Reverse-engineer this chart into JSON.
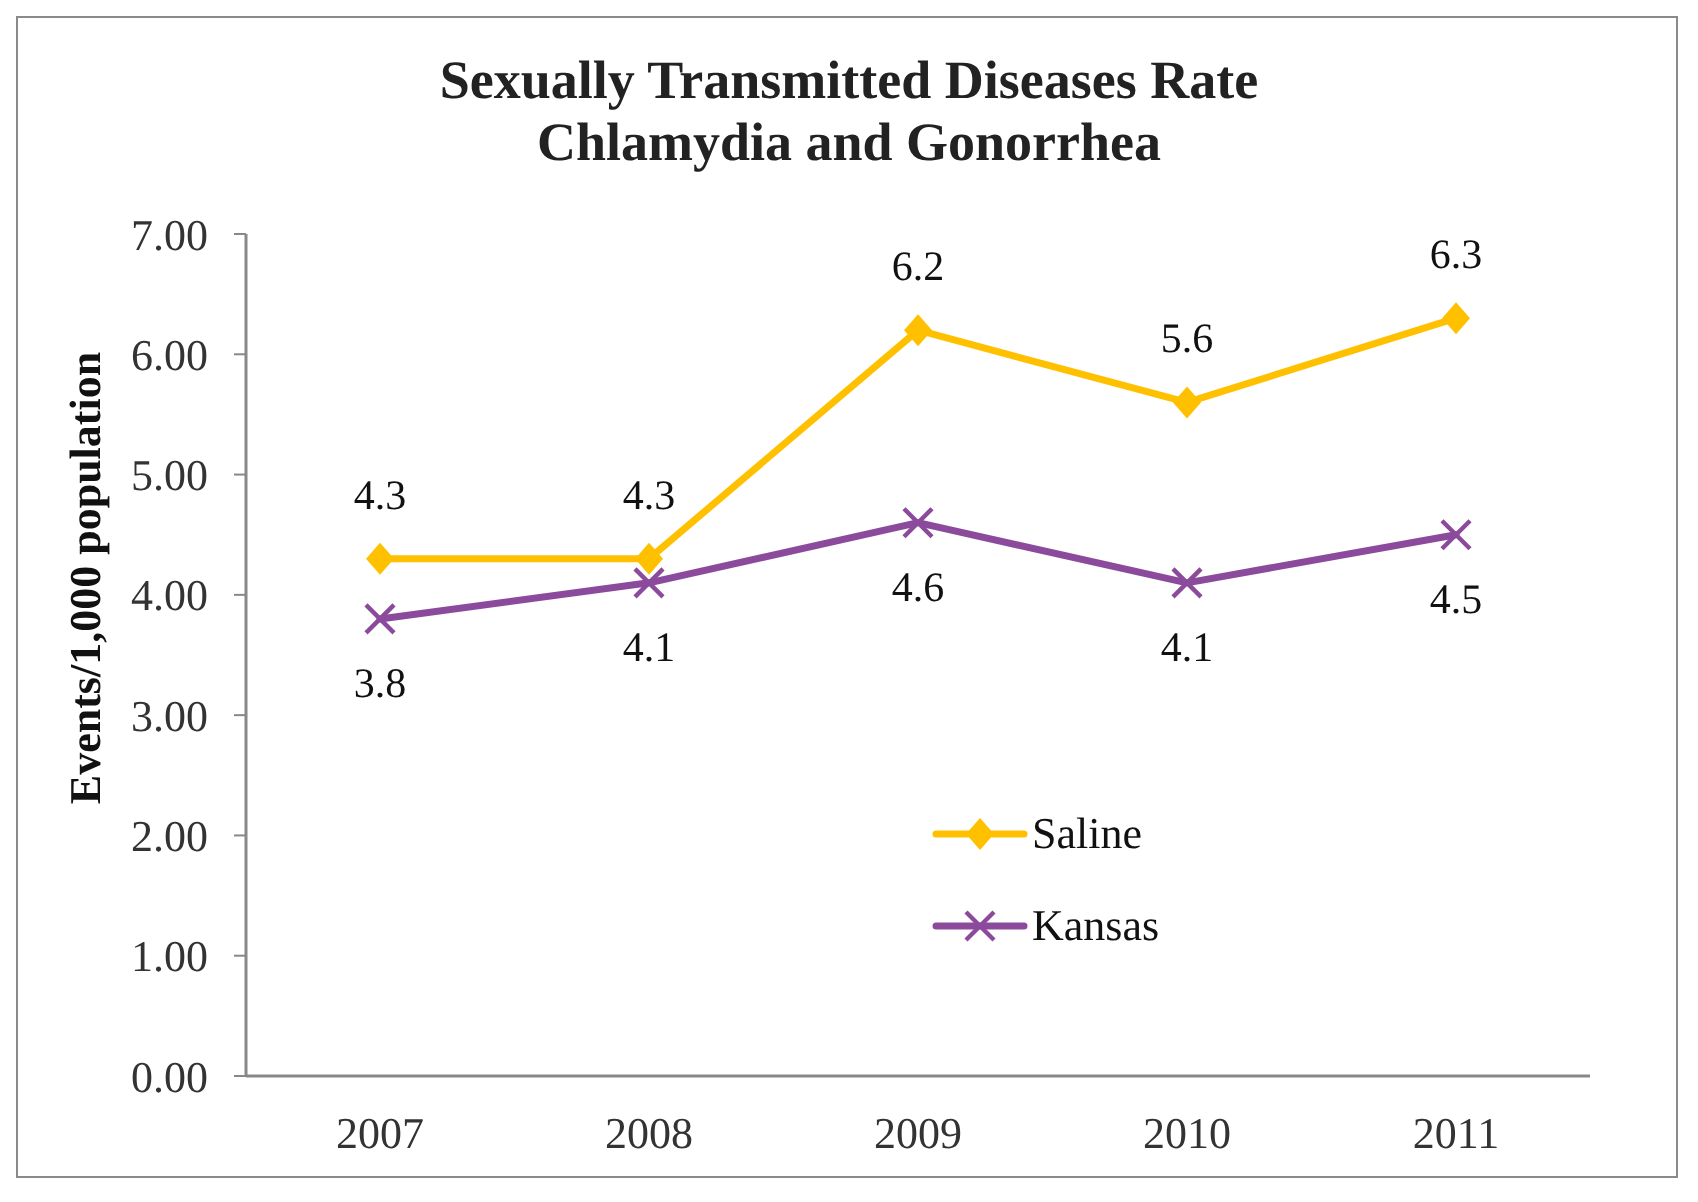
{
  "chart_data": {
    "type": "line",
    "title": "Sexually Transmitted Diseases Rate",
    "subtitle": "Chlamydia and Gonorrhea",
    "ylabel": "Events/1,000 population",
    "categories": [
      "2007",
      "2008",
      "2009",
      "2010",
      "2011"
    ],
    "series": [
      {
        "name": "Saline",
        "color": "#ffc000",
        "marker": "diamond",
        "values": [
          4.3,
          4.3,
          6.2,
          5.6,
          6.3
        ]
      },
      {
        "name": "Kansas",
        "color": "#8b4a9c",
        "marker": "cross",
        "values": [
          3.8,
          4.1,
          4.6,
          4.1,
          4.5
        ]
      }
    ],
    "ylim": [
      0,
      7
    ],
    "yticks": [
      {
        "value": 0,
        "label": "0.00"
      },
      {
        "value": 1,
        "label": "1.00"
      },
      {
        "value": 2,
        "label": "2.00"
      },
      {
        "value": 3,
        "label": "3.00"
      },
      {
        "value": 4,
        "label": "4.00"
      },
      {
        "value": 5,
        "label": "5.00"
      },
      {
        "value": 6,
        "label": "6.00"
      },
      {
        "value": 7,
        "label": "7.00"
      }
    ],
    "legend": "bottom",
    "data_labels": true,
    "line_style": "solid"
  }
}
